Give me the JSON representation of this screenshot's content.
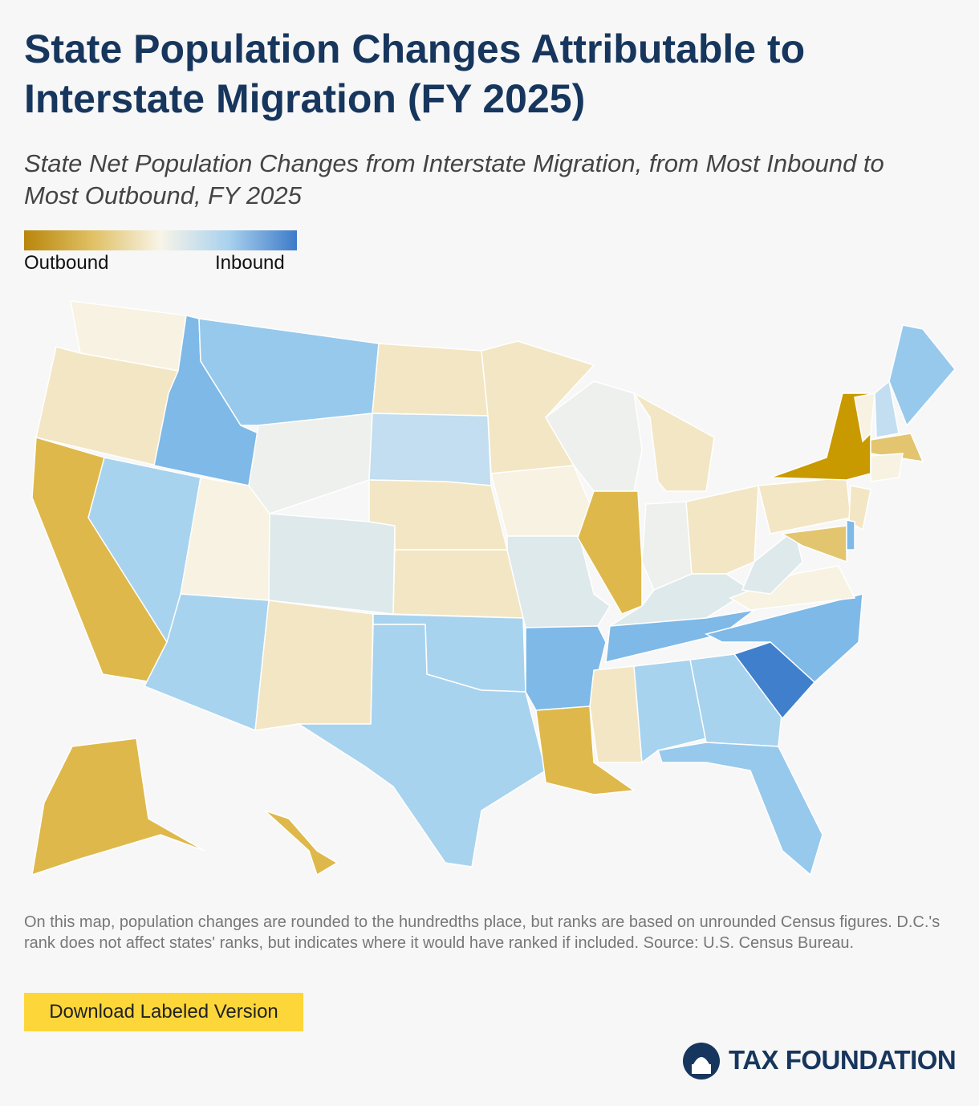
{
  "header": {
    "title": "State Population Changes Attributable to Interstate Migration (FY 2025)",
    "subtitle": "State Net Population Changes from Interstate Migration, from Most Inbound to Most Outbound, FY 2025"
  },
  "legend": {
    "colors": [
      "#b8860b",
      "#e0c064",
      "#f8f4e8",
      "#a9d1ee",
      "#3d7bc8"
    ],
    "low_label": "Outbound",
    "high_label": "Inbound"
  },
  "footnote": "On this map, population changes are rounded to the hundredths place, but ranks are based on unrounded Census figures. D.C.'s rank does not affect states' ranks, but indicates where it would have ranked if included. Source: U.S. Census Bureau.",
  "button": "Download Labeled Version",
  "logo": "TAX FOUNDATION"
}
